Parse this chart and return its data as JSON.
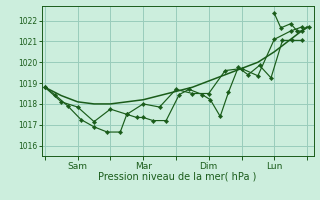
{
  "background_color": "#cceedd",
  "grid_color": "#99ccbb",
  "line_color": "#1a5c1a",
  "xlabel": "Pression niveau de la mer( hPa )",
  "ylim": [
    1015.5,
    1022.7
  ],
  "yticks": [
    1016,
    1017,
    1018,
    1019,
    1020,
    1021,
    1022
  ],
  "xtick_labels": [
    "",
    "Sam",
    "",
    "Mar",
    "",
    "Dim",
    "",
    "Lun",
    ""
  ],
  "xtick_positions": [
    0,
    1,
    2,
    3,
    4,
    5,
    6,
    7,
    8
  ],
  "xlim": [
    -0.1,
    8.2
  ],
  "series1_x": [
    0.0,
    0.5,
    1.0,
    1.5,
    2.0,
    2.5,
    3.0,
    3.5,
    4.0,
    4.5,
    5.0,
    5.5,
    6.0,
    6.5,
    7.0,
    7.5,
    8.0
  ],
  "series1_y": [
    1018.8,
    1018.4,
    1018.1,
    1018.0,
    1018.0,
    1018.1,
    1018.2,
    1018.4,
    1018.6,
    1018.8,
    1019.1,
    1019.4,
    1019.7,
    1020.0,
    1020.5,
    1021.1,
    1021.7
  ],
  "series2_x": [
    0.0,
    0.3,
    0.7,
    1.1,
    1.5,
    1.9,
    2.3,
    2.5,
    2.8,
    3.0,
    3.3,
    3.7,
    4.1,
    4.4,
    4.8,
    5.05,
    5.35,
    5.6,
    5.9,
    6.2,
    6.55,
    6.9,
    7.25,
    7.55,
    7.85
  ],
  "series2_y": [
    1018.8,
    1018.45,
    1017.9,
    1017.25,
    1016.9,
    1016.65,
    1016.65,
    1017.5,
    1017.35,
    1017.35,
    1017.2,
    1017.2,
    1018.45,
    1018.7,
    1018.45,
    1018.2,
    1017.4,
    1018.55,
    1019.75,
    1019.4,
    1019.85,
    1019.25,
    1021.05,
    1021.05,
    1021.05
  ],
  "series3_x": [
    0.0,
    0.5,
    1.0,
    1.5,
    2.0,
    2.5,
    3.0,
    3.5,
    4.0,
    4.5,
    5.0,
    5.5,
    6.0,
    6.5,
    7.0,
    7.5,
    7.85
  ],
  "series3_y": [
    1018.8,
    1018.1,
    1017.85,
    1017.15,
    1017.75,
    1017.5,
    1018.0,
    1017.85,
    1018.7,
    1018.5,
    1018.5,
    1019.6,
    1019.7,
    1019.35,
    1021.1,
    1021.5,
    1021.7
  ],
  "series4_x": [
    7.0,
    7.2,
    7.5,
    7.7,
    7.85,
    8.05
  ],
  "series4_y": [
    1022.35,
    1021.65,
    1021.85,
    1021.5,
    1021.5,
    1021.7
  ]
}
